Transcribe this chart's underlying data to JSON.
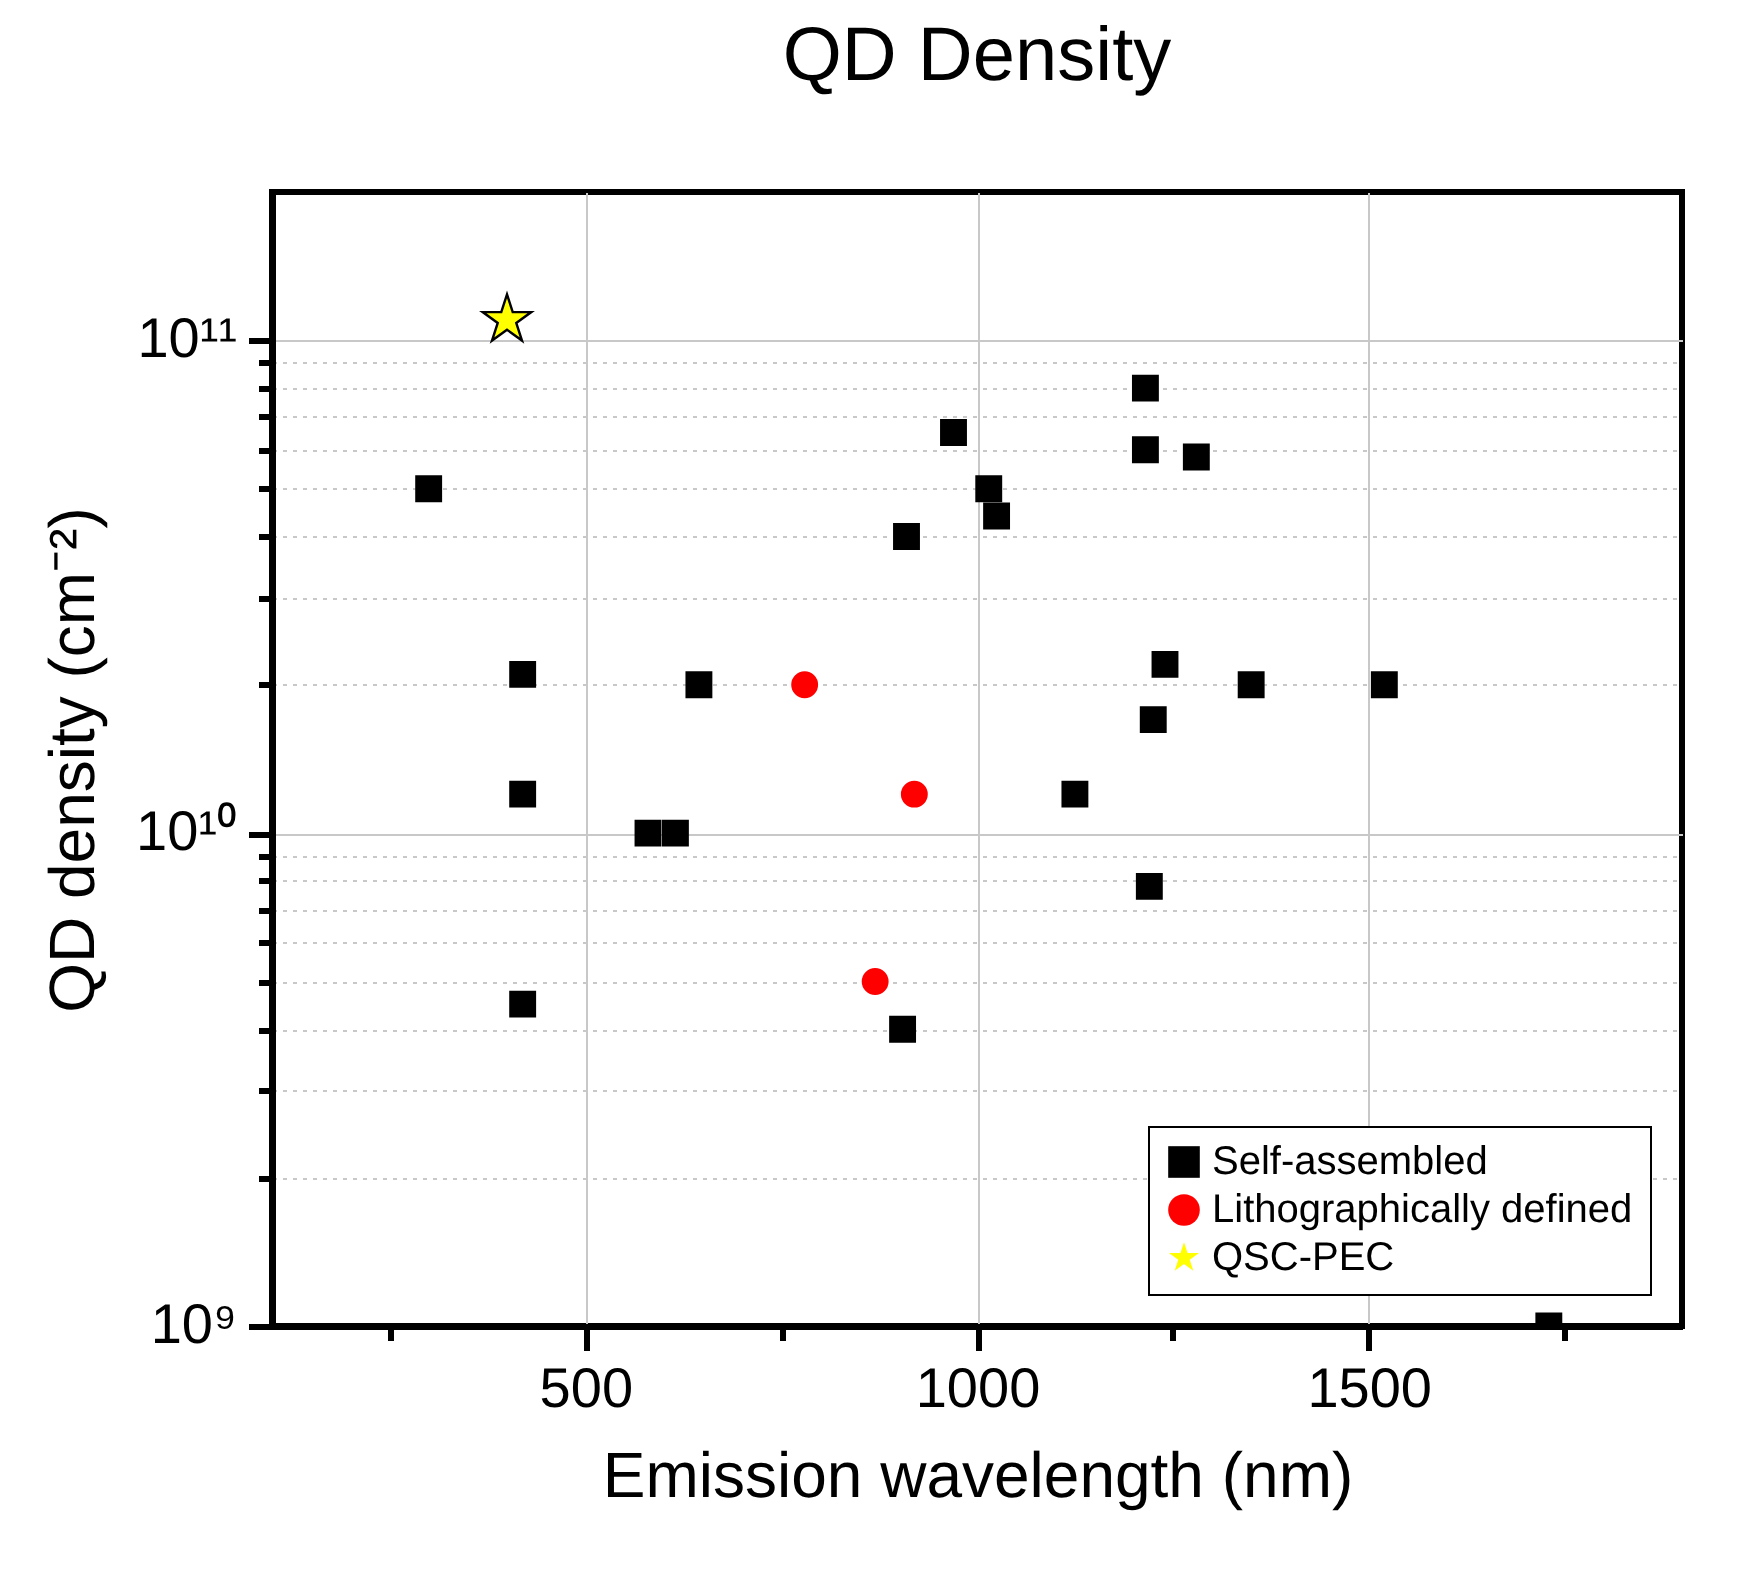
{
  "chart_data": {
    "type": "scatter",
    "title": "QD Density",
    "xlabel": "Emission wavelength (nm)",
    "ylabel": "QD density (cm⁻²)",
    "log": "y",
    "grid": true,
    "legend": "bottom right",
    "xlim": [
      100,
      1900
    ],
    "xticks": [
      {
        "value": 250,
        "label": null
      },
      500,
      {
        "value": 750,
        "label": null
      },
      1000,
      {
        "value": 1250,
        "label": null
      },
      1500,
      {
        "value": 1750,
        "label": null
      }
    ],
    "ylim": [
      1000000000,
      200000000000
    ],
    "yticks": [
      {
        "value": 1000000000,
        "label": "10⁹"
      },
      {
        "value": 2000000000,
        "label": null
      },
      {
        "value": 3000000000,
        "label": null
      },
      {
        "value": 4000000000,
        "label": null
      },
      {
        "value": 5000000000,
        "label": null
      },
      {
        "value": 6000000000,
        "label": null
      },
      {
        "value": 7000000000,
        "label": null
      },
      {
        "value": 8000000000,
        "label": null
      },
      {
        "value": 9000000000,
        "label": null
      },
      {
        "value": 10000000000,
        "label": "10¹⁰"
      },
      {
        "value": 20000000000,
        "label": null
      },
      {
        "value": 30000000000,
        "label": null
      },
      {
        "value": 40000000000,
        "label": null
      },
      {
        "value": 50000000000,
        "label": null
      },
      {
        "value": 60000000000,
        "label": null
      },
      {
        "value": 70000000000,
        "label": null
      },
      {
        "value": 80000000000,
        "label": null
      },
      {
        "value": 90000000000,
        "label": null
      },
      {
        "value": 100000000000,
        "label": "10¹¹"
      }
    ],
    "series": [
      {
        "name": "Self-assembled",
        "color": "#000000",
        "marker": "square",
        "x": [
          300,
          420,
          420,
          420,
          580,
          615,
          645,
          905,
          910,
          970,
          1015,
          1025,
          1125,
          1215,
          1215,
          1220,
          1225,
          1240,
          1280,
          1350,
          1520,
          1730
        ],
        "values": [
          50000000000,
          21000000000,
          12000000000,
          4500000000,
          10000000000,
          10000000000,
          20000000000,
          4000000000,
          40000000000,
          65000000000,
          50000000000,
          44000000000,
          12000000000,
          80000000000,
          60000000000,
          7800000000,
          17000000000,
          22000000000,
          58000000000,
          20000000000,
          20000000000,
          1000000000
        ]
      },
      {
        "name": "Lithographically defined",
        "color": "#ff0000",
        "marker": "circle",
        "x": [
          780,
          870,
          920
        ],
        "values": [
          20000000000,
          5000000000,
          12000000000
        ]
      },
      {
        "name": "QSC-PEC",
        "color": "#ffff00",
        "marker": "star",
        "x": [
          400
        ],
        "values": [
          110000000000
        ]
      }
    ]
  }
}
